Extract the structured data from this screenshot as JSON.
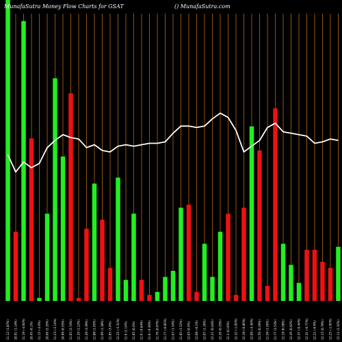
{
  "header": {
    "left": "MunafaSutra  Money Flow  Charts for GSAT",
    "right": "() MunafaSutra.com"
  },
  "colors": {
    "background": "#000000",
    "up": "#22ee22",
    "down": "#ee1111",
    "line": "#ffffff",
    "grid": "#b86a1a"
  },
  "chart_data": {
    "type": "bar",
    "title": "",
    "bar_ylim": [
      0,
      100
    ],
    "line_ylim": [
      0,
      100
    ],
    "categories": [
      "11.12 (1.87%)",
      "10.91 (1.14%)",
      "11.19 (-4.04%)",
      "10.45 (6.1%)",
      "11.15 (-4.6%)",
      "10.66 (5.35%)",
      "11.23 (-2.14%)",
      "10.99 (0.55%)",
      "11.05 (2.74%)",
      "11.35 (1.22%)",
      "11.49 (3.39%)",
      "11.88 (1.65%)",
      "11.69 (1.38%)",
      "11.85 (3.4%)",
      "12.25 (-5.31%)",
      "11.6 (2.14%)",
      "11.85 (0.4%)",
      "11.9 (-0.84%)",
      "11.8 (-0.36%)",
      "11.76 (0.07%)",
      "11.77 (-0.85%)",
      "11.67 (1.54%)",
      "11.85 (1.52%)",
      "12.03 (0.4%)",
      "12.08 (-0.1%)",
      "12.07 (1.16%)",
      "12.21 (0.44%)",
      "12.26 (0.33%)",
      "12.3 (0.16%)",
      "12.32 (-1.05%)",
      "12.19 (-0.86%)",
      "12.09 (-4.36%)",
      "11.56 (0.29%)",
      "11.59 (1.56%)",
      "11.77 (3.53%)",
      "12.19 (0.58%)",
      "12.26 (0.92%)",
      "12.37 (-0.44%)",
      "12.31 (-0.77%)",
      "12.22 (-0.6%)",
      "12.15 (0.79%)",
      "12.25 (-1.05%)",
      "12.12 (1.32%)"
    ],
    "colors": [
      "up",
      "down",
      "up",
      "down",
      "up",
      "up",
      "up",
      "up",
      "down",
      "down",
      "down",
      "up",
      "down",
      "down",
      "up",
      "up",
      "up",
      "down",
      "down",
      "up",
      "up",
      "up",
      "up",
      "down",
      "down",
      "up",
      "up",
      "up",
      "down",
      "down",
      "down",
      "up",
      "down",
      "down",
      "down",
      "up",
      "up",
      "up",
      "down",
      "down",
      "down",
      "down",
      "up"
    ],
    "bars": [
      100,
      23,
      93,
      54,
      1,
      29,
      74,
      48,
      69,
      1,
      24,
      39,
      27,
      11,
      41,
      7,
      29,
      7,
      2,
      3,
      8,
      10,
      31,
      32,
      3,
      19,
      8,
      23,
      29,
      2,
      31,
      58,
      50,
      5,
      64,
      19,
      12,
      6,
      17,
      17,
      13,
      11,
      18
    ],
    "line": [
      47,
      35,
      42,
      38,
      41,
      52,
      57,
      61,
      59,
      58,
      52,
      54,
      50,
      49,
      53,
      54,
      53,
      54,
      55,
      55,
      56,
      62,
      67,
      67,
      66,
      67,
      72,
      76,
      73,
      64,
      49,
      53,
      57,
      66,
      69,
      63,
      62,
      61,
      60,
      55,
      56,
      58,
      57
    ]
  }
}
